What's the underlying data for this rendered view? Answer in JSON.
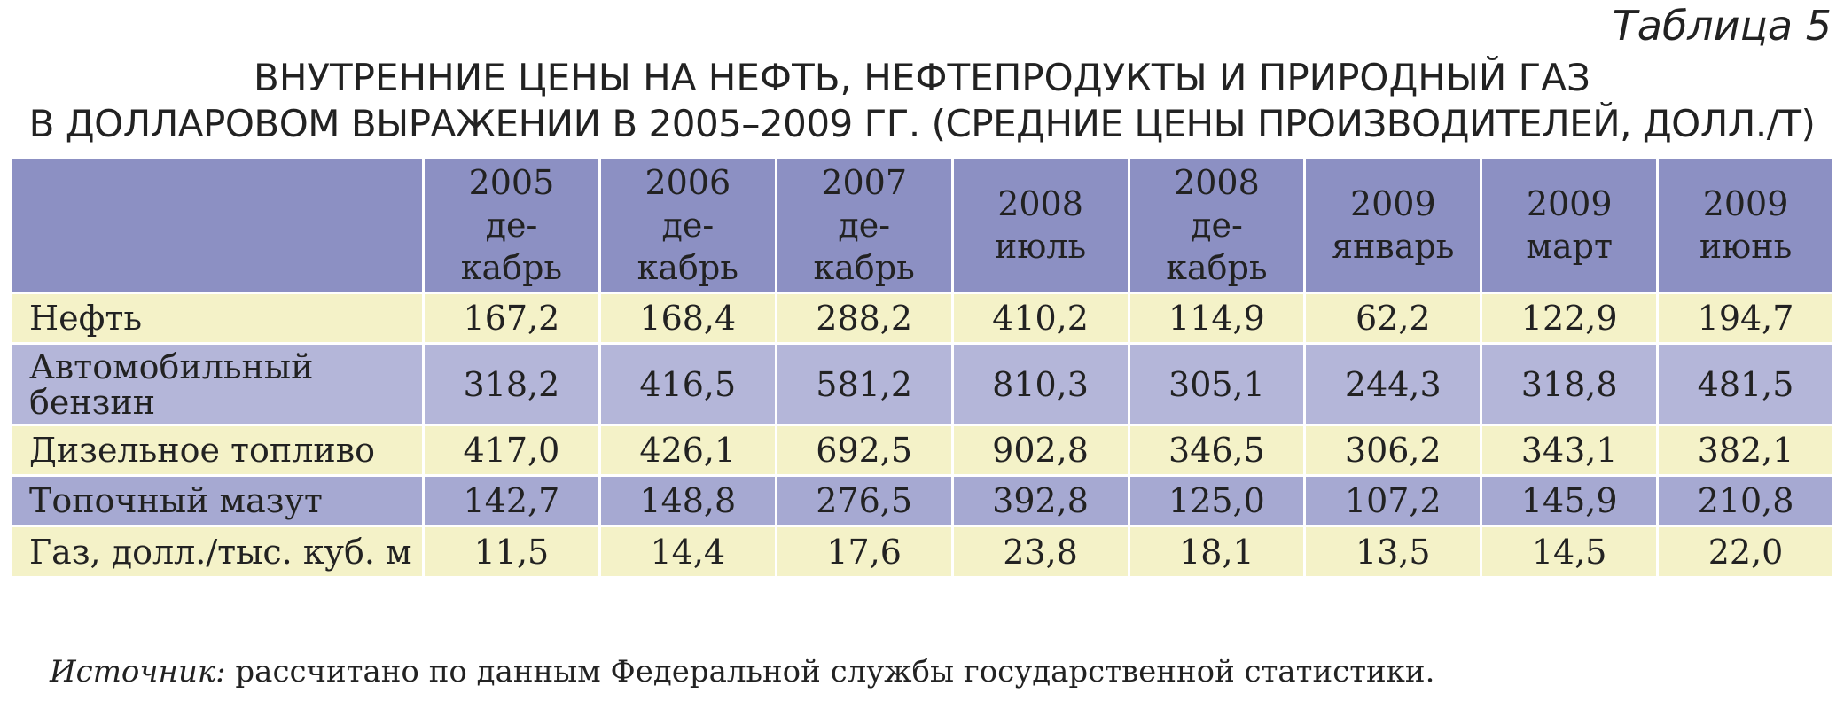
{
  "header": {
    "label": "Таблица 5",
    "title_lines": [
      "ВНУТРЕННИЕ ЦЕНЫ НА НЕФТЬ, НЕФТЕПРОДУКТЫ И ПРИРОДНЫЙ ГАЗ",
      "В ДОЛЛАРОВОМ ВЫРАЖЕНИИ В 2005–2009 ГГ. (СРЕДНИЕ ЦЕНЫ ПРОИЗВОДИТЕЛЕЙ, ДОЛЛ./Т)"
    ]
  },
  "table": {
    "columns": [
      [
        "2005",
        "де-",
        "кабрь"
      ],
      [
        "2006",
        "де-",
        "кабрь"
      ],
      [
        "2007",
        "де-",
        "кабрь"
      ],
      [
        "2008",
        "июль"
      ],
      [
        "2008",
        "де-",
        "кабрь"
      ],
      [
        "2009",
        "январь"
      ],
      [
        "2009",
        "март"
      ],
      [
        "2009",
        "июнь"
      ]
    ],
    "rows": [
      [
        "Нефть",
        "167,2",
        "168,4",
        "288,2",
        "410,2",
        "114,9",
        "62,2",
        "122,9",
        "194,7"
      ],
      [
        "Автомобильный бензин",
        "318,2",
        "416,5",
        "581,2",
        "810,3",
        "305,1",
        "244,3",
        "318,8",
        "481,5"
      ],
      [
        "Дизельное топливо",
        "417,0",
        "426,1",
        "692,5",
        "902,8",
        "346,5",
        "306,2",
        "343,1",
        "382,1"
      ],
      [
        "Топочный мазут",
        "142,7",
        "148,8",
        "276,5",
        "392,8",
        "125,0",
        "107,2",
        "145,9",
        "210,8"
      ],
      [
        "Газ, долл./тыс. куб. м",
        "11,5",
        "14,4",
        "17,6",
        "23,8",
        "18,1",
        "13,5",
        "14,5",
        "22,0"
      ]
    ]
  },
  "footer": {
    "source_label": "Источник:",
    "source_text": "рассчитано по данным Федеральной службы государственной статистики."
  }
}
